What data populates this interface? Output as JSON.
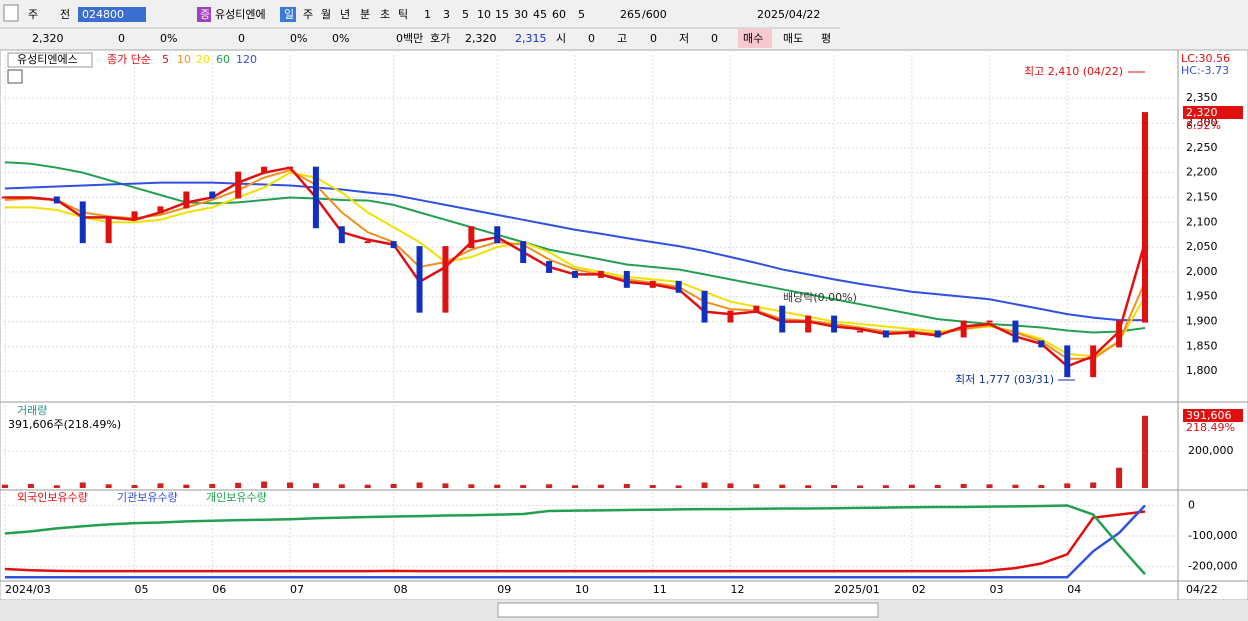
{
  "toolbar": [
    "주",
    "전",
    "024800",
    "증",
    "유성티엔에",
    "일",
    "주",
    "월",
    "년",
    "분",
    "초",
    "틱",
    "1",
    "3",
    "5",
    "10",
    "15",
    "30",
    "45",
    "60",
    "5",
    "265",
    "/600",
    "2025/04/22"
  ],
  "info_bar": [
    "2,320",
    "0",
    "0%",
    "0",
    "0%",
    "0%",
    "0백만",
    "호가",
    "2,320",
    "2,315",
    "시",
    "0",
    "고",
    "0",
    "저",
    "0",
    "매수",
    "매도",
    "평"
  ],
  "chart_data": [
    {
      "type": "price",
      "title": "유성티엔에스",
      "legend_prefix": "종가 단순",
      "annotations": {
        "high": "최고 2,410 (04/22)",
        "low": "최저 1,777 (03/31)",
        "ex_dividend": "배당락(0.00%)",
        "lc": "LC:30.56",
        "hc": "HC:-3.73",
        "last_price": "2,320",
        "change": "8.92%"
      },
      "close": [
        2150,
        2150,
        2140,
        2060,
        2110,
        2120,
        2130,
        2160,
        2150,
        2200,
        2210,
        2210,
        2090,
        2060,
        2060,
        2050,
        1920,
        2050,
        2090,
        2060,
        2020,
        2000,
        1990,
        2000,
        1970,
        1980,
        1960,
        1900,
        1920,
        1930,
        1880,
        1910,
        1880,
        1880,
        1870,
        1880,
        1870,
        1900,
        1900,
        1860,
        1850,
        1790,
        1850,
        1900,
        2320
      ],
      "up_color": "#e01010",
      "down_color": "#1030c0",
      "series": [
        {
          "name": "5",
          "color": "#e01010",
          "values": [
            2150,
            2150,
            2145,
            2110,
            2110,
            2105,
            2120,
            2140,
            2150,
            2180,
            2200,
            2210,
            2150,
            2080,
            2065,
            2055,
            1980,
            2010,
            2060,
            2070,
            2040,
            2010,
            1995,
            1995,
            1980,
            1975,
            1965,
            1920,
            1915,
            1920,
            1900,
            1900,
            1890,
            1885,
            1875,
            1878,
            1872,
            1890,
            1895,
            1870,
            1855,
            1810,
            1830,
            1880,
            2060
          ]
        },
        {
          "name": "10",
          "color": "#f0901a",
          "values": [
            2145,
            2148,
            2145,
            2120,
            2112,
            2108,
            2115,
            2130,
            2145,
            2165,
            2190,
            2205,
            2175,
            2120,
            2080,
            2060,
            2010,
            2020,
            2045,
            2060,
            2055,
            2025,
            2005,
            1995,
            1985,
            1978,
            1970,
            1940,
            1925,
            1922,
            1905,
            1902,
            1895,
            1888,
            1880,
            1880,
            1875,
            1885,
            1892,
            1878,
            1860,
            1825,
            1825,
            1860,
            1980
          ]
        },
        {
          "name": "20",
          "color": "#f2e000",
          "values": [
            2130,
            2130,
            2125,
            2110,
            2100,
            2100,
            2105,
            2120,
            2130,
            2150,
            2170,
            2200,
            2190,
            2160,
            2120,
            2090,
            2060,
            2020,
            2030,
            2050,
            2060,
            2040,
            2010,
            2000,
            1990,
            1985,
            1980,
            1960,
            1940,
            1930,
            1920,
            1910,
            1900,
            1895,
            1890,
            1885,
            1880,
            1885,
            1890,
            1880,
            1865,
            1835,
            1830,
            1860,
            1950
          ]
        },
        {
          "name": "60",
          "color": "#22a050",
          "values": [
            2221,
            2218,
            2210,
            2200,
            2185,
            2170,
            2155,
            2140,
            2138,
            2140,
            2145,
            2150,
            2148,
            2145,
            2144,
            2135,
            2120,
            2105,
            2090,
            2075,
            2060,
            2045,
            2035,
            2025,
            2015,
            2010,
            2005,
            1995,
            1985,
            1975,
            1965,
            1955,
            1945,
            1935,
            1925,
            1915,
            1905,
            1900,
            1895,
            1892,
            1888,
            1882,
            1878,
            1880,
            1887
          ]
        },
        {
          "name": "120",
          "color": "#3050e0",
          "values": [
            2168,
            2170,
            2172,
            2174,
            2176,
            2178,
            2180,
            2180,
            2180,
            2178,
            2176,
            2174,
            2170,
            2166,
            2160,
            2155,
            2145,
            2135,
            2125,
            2115,
            2105,
            2095,
            2085,
            2077,
            2068,
            2060,
            2052,
            2042,
            2030,
            2018,
            2005,
            1995,
            1985,
            1976,
            1968,
            1960,
            1955,
            1950,
            1945,
            1935,
            1925,
            1915,
            1908,
            1903,
            1903
          ]
        }
      ],
      "ylim": [
        1742,
        2437
      ],
      "yticks": [
        {
          "value": 1800,
          "label": "1,800"
        },
        {
          "value": 1850,
          "label": "1,850"
        },
        {
          "value": 1900,
          "label": "1,900"
        },
        {
          "value": 1950,
          "label": "1,950"
        },
        {
          "value": 2000,
          "label": "2,000"
        },
        {
          "value": 2050,
          "label": "2,050"
        },
        {
          "value": 2100,
          "label": "2,100"
        },
        {
          "value": 2150,
          "label": "2,150"
        },
        {
          "value": 2200,
          "label": "2,200"
        },
        {
          "value": 2250,
          "label": "2,250"
        },
        {
          "value": 2300,
          "label": "2,300"
        },
        {
          "value": 2350,
          "label": "2,350"
        }
      ],
      "grid": true
    },
    {
      "type": "volume",
      "title": "거래량",
      "subtitle": "391,606주(218.49%)",
      "last_value": "391,606",
      "change": "218.49%",
      "color": "#d02020",
      "values": [
        18000,
        22000,
        15000,
        30000,
        20000,
        16000,
        25000,
        18000,
        22000,
        28000,
        35000,
        30000,
        26000,
        20000,
        18000,
        22000,
        30000,
        25000,
        20000,
        18000,
        16000,
        20000,
        15000,
        18000,
        22000,
        16000,
        14000,
        30000,
        25000,
        20000,
        18000,
        15000,
        16000,
        14000,
        15000,
        18000,
        16000,
        22000,
        20000,
        18000,
        16000,
        25000,
        30000,
        110000,
        391606
      ],
      "ylim": [
        0,
        450000
      ],
      "yticks": [
        {
          "value": 200000,
          "label": "200,000"
        }
      ]
    },
    {
      "type": "line",
      "series": [
        {
          "name": "외국인보유수량",
          "color": "#e01010",
          "values": [
            -208000,
            -212000,
            -214000,
            -215000,
            -215000,
            -215000,
            -215000,
            -215000,
            -215000,
            -215000,
            -215000,
            -215000,
            -215000,
            -215000,
            -215000,
            -214000,
            -215000,
            -215000,
            -215000,
            -215000,
            -215000,
            -215000,
            -215000,
            -215000,
            -215000,
            -215000,
            -215000,
            -215000,
            -215000,
            -215000,
            -215000,
            -215000,
            -215000,
            -215000,
            -215000,
            -215000,
            -215000,
            -215000,
            -213000,
            -205000,
            -190000,
            -160000,
            -40000,
            -30000,
            -20000
          ]
        },
        {
          "name": "기관보유수량",
          "color": "#3050e0",
          "values": [
            -235000,
            -235000,
            -235000,
            -235000,
            -235000,
            -235000,
            -235000,
            -235000,
            -235000,
            -235000,
            -235000,
            -235000,
            -235000,
            -235000,
            -235000,
            -235000,
            -235000,
            -235000,
            -235000,
            -235000,
            -235000,
            -235000,
            -235000,
            -235000,
            -235000,
            -235000,
            -235000,
            -235000,
            -235000,
            -235000,
            -235000,
            -235000,
            -235000,
            -235000,
            -235000,
            -235000,
            -235000,
            -235000,
            -235000,
            -235000,
            -235000,
            -235000,
            -150000,
            -90000,
            0
          ]
        },
        {
          "name": "개인보유수량",
          "color": "#22a050",
          "values": [
            -92000,
            -85000,
            -75000,
            -68000,
            -62000,
            -58000,
            -56000,
            -52000,
            -50000,
            -48000,
            -47000,
            -45000,
            -42000,
            -40000,
            -38000,
            -36000,
            -35000,
            -33000,
            -32000,
            -30000,
            -28000,
            -18000,
            -17000,
            -16000,
            -15000,
            -14000,
            -13000,
            -12000,
            -12000,
            -11000,
            -10000,
            -10000,
            -9000,
            -8000,
            -7000,
            -6000,
            -5000,
            -5000,
            -4000,
            -3000,
            -2000,
            0,
            -30000,
            -130000,
            -225000
          ]
        }
      ],
      "ylim": [
        -244000,
        44000
      ],
      "yticks": [
        {
          "value": 0,
          "label": "0"
        },
        {
          "value": -100000,
          "label": "-100,000"
        },
        {
          "value": -200000,
          "label": "-200,000"
        }
      ],
      "xlim": [
        0,
        44
      ],
      "xticks": [
        {
          "value": 0,
          "label": "2024/03"
        },
        {
          "value": 5,
          "label": "05"
        },
        {
          "value": 8,
          "label": "06"
        },
        {
          "value": 11,
          "label": "07"
        },
        {
          "value": 15,
          "label": "08"
        },
        {
          "value": 19,
          "label": "09"
        },
        {
          "value": 22,
          "label": "10"
        },
        {
          "value": 25,
          "label": "11"
        },
        {
          "value": 28,
          "label": "12"
        },
        {
          "value": 32,
          "label": "2025/01"
        },
        {
          "value": 35,
          "label": "02"
        },
        {
          "value": 38,
          "label": "03"
        },
        {
          "value": 41,
          "label": "04"
        }
      ],
      "last_label": "04/22"
    }
  ]
}
